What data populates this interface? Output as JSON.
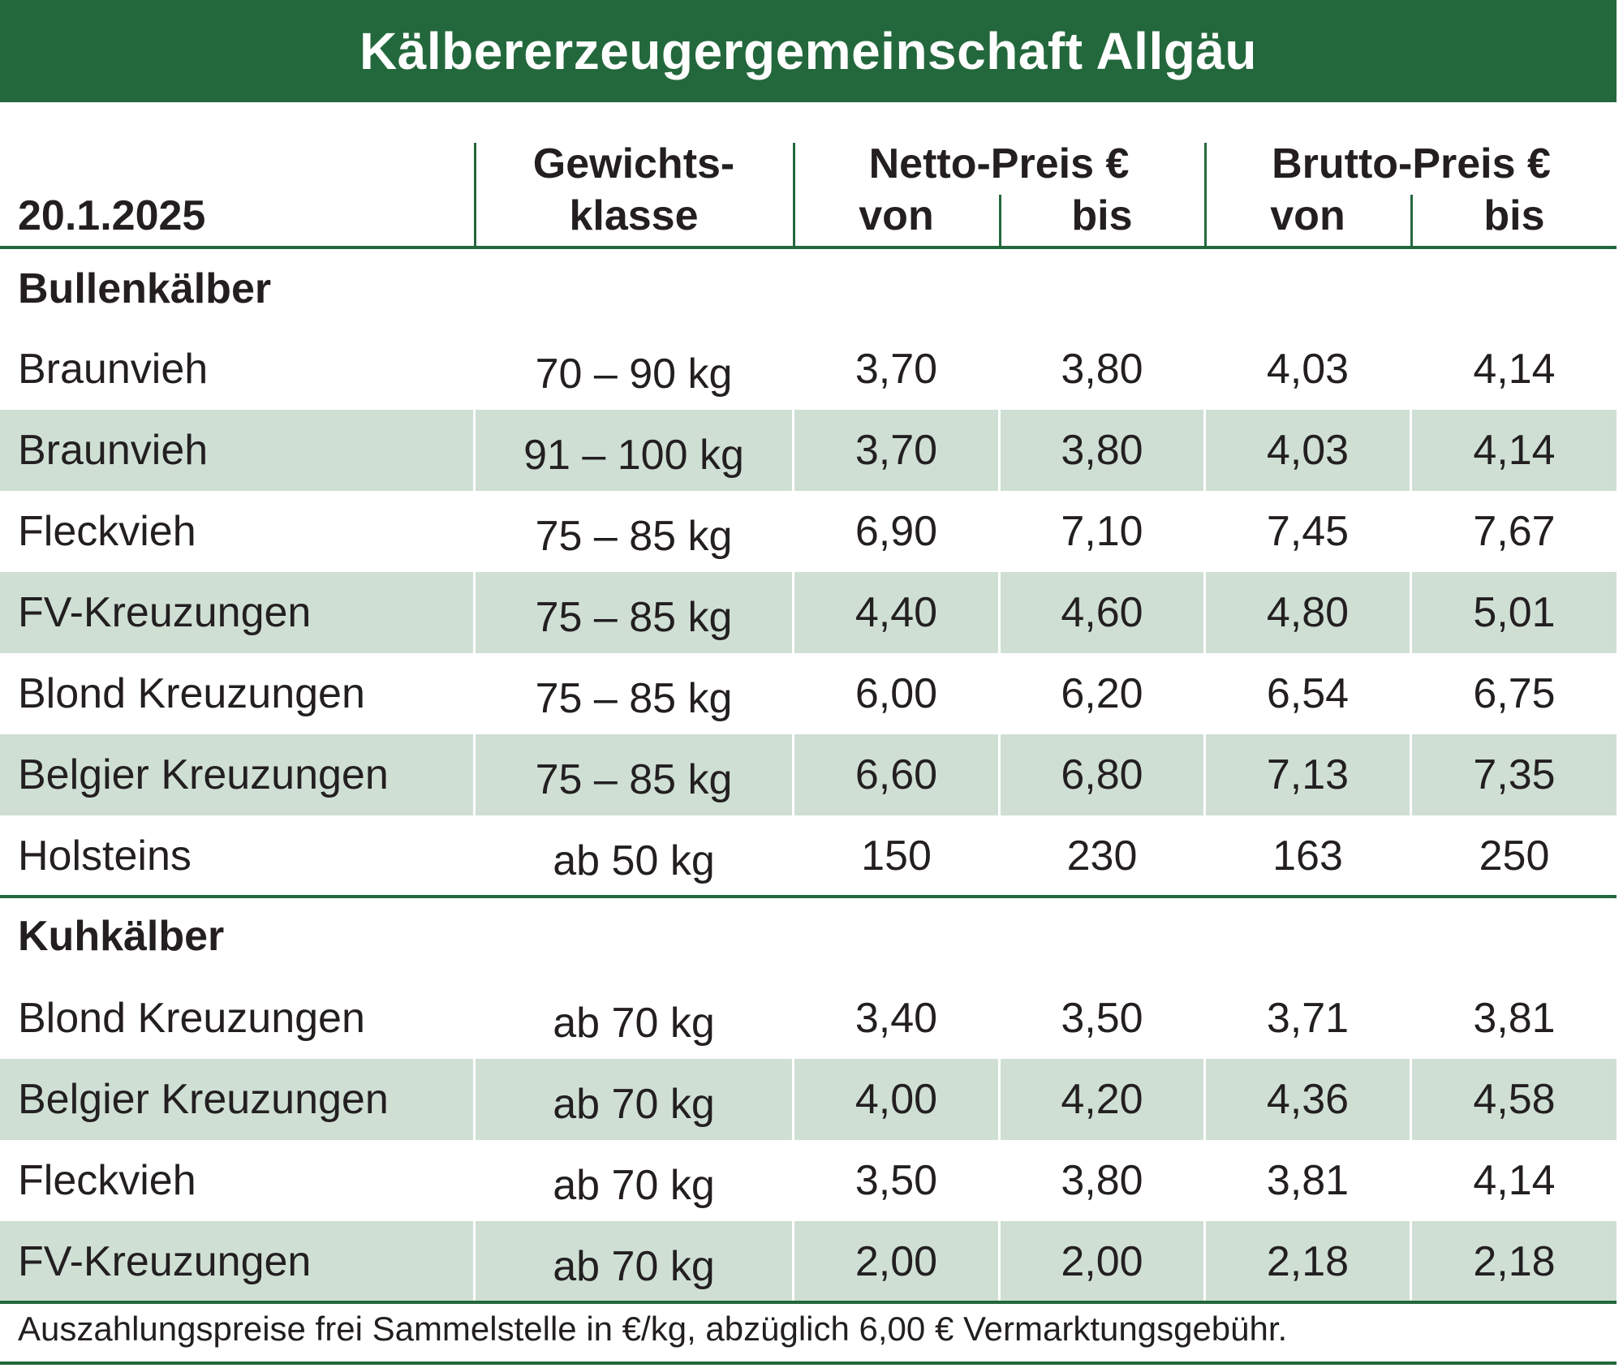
{
  "title": "Kälbererzeugergemeinschaft Allgäu",
  "header": {
    "date": "20.1.2025",
    "weight_line1": "Gewichts-",
    "weight_line2": "klasse",
    "netto": "Netto-Preis €",
    "brutto": "Brutto-Preis €",
    "von": "von",
    "bis": "bis"
  },
  "sections": [
    {
      "label": "Bullenkälber",
      "rows": [
        {
          "name": "Braunvieh",
          "weight": "70 – 90 kg",
          "netto_von": "3,70",
          "netto_bis": "3,80",
          "brutto_von": "4,03",
          "brutto_bis": "4,14"
        },
        {
          "name": "Braunvieh",
          "weight": "91 – 100 kg",
          "netto_von": "3,70",
          "netto_bis": "3,80",
          "brutto_von": "4,03",
          "brutto_bis": "4,14"
        },
        {
          "name": "Fleckvieh",
          "weight": "75 – 85 kg",
          "netto_von": "6,90",
          "netto_bis": "7,10",
          "brutto_von": "7,45",
          "brutto_bis": "7,67"
        },
        {
          "name": "FV-Kreuzungen",
          "weight": "75 – 85 kg",
          "netto_von": "4,40",
          "netto_bis": "4,60",
          "brutto_von": "4,80",
          "brutto_bis": "5,01"
        },
        {
          "name": "Blond Kreuzungen",
          "weight": "75 – 85 kg",
          "netto_von": "6,00",
          "netto_bis": "6,20",
          "brutto_von": "6,54",
          "brutto_bis": "6,75"
        },
        {
          "name": "Belgier Kreuzungen",
          "weight": "75 – 85 kg",
          "netto_von": "6,60",
          "netto_bis": "6,80",
          "brutto_von": "7,13",
          "brutto_bis": "7,35"
        },
        {
          "name": "Holsteins",
          "weight": "ab 50 kg",
          "netto_von": "150",
          "netto_bis": "230",
          "brutto_von": "163",
          "brutto_bis": "250"
        }
      ]
    },
    {
      "label": "Kuhkälber",
      "rows": [
        {
          "name": "Blond Kreuzungen",
          "weight": "ab 70 kg",
          "netto_von": "3,40",
          "netto_bis": "3,50",
          "brutto_von": "3,71",
          "brutto_bis": "3,81"
        },
        {
          "name": "Belgier Kreuzungen",
          "weight": "ab 70 kg",
          "netto_von": "4,00",
          "netto_bis": "4,20",
          "brutto_von": "4,36",
          "brutto_bis": "4,58"
        },
        {
          "name": "Fleckvieh",
          "weight": "ab 70 kg",
          "netto_von": "3,50",
          "netto_bis": "3,80",
          "brutto_von": "3,81",
          "brutto_bis": "4,14"
        },
        {
          "name": "FV-Kreuzungen",
          "weight": "ab 70 kg",
          "netto_von": "2,00",
          "netto_bis": "2,00",
          "brutto_von": "2,18",
          "brutto_bis": "2,18"
        }
      ]
    }
  ],
  "footnote": "Auszahlungspreise frei Sammelstelle in €/kg, abzüglich 6,00 € Vermarktungsgebühr.",
  "colors": {
    "brand_green": "#23683c",
    "row_shade": "#cfdfd4",
    "text": "#231f20"
  }
}
